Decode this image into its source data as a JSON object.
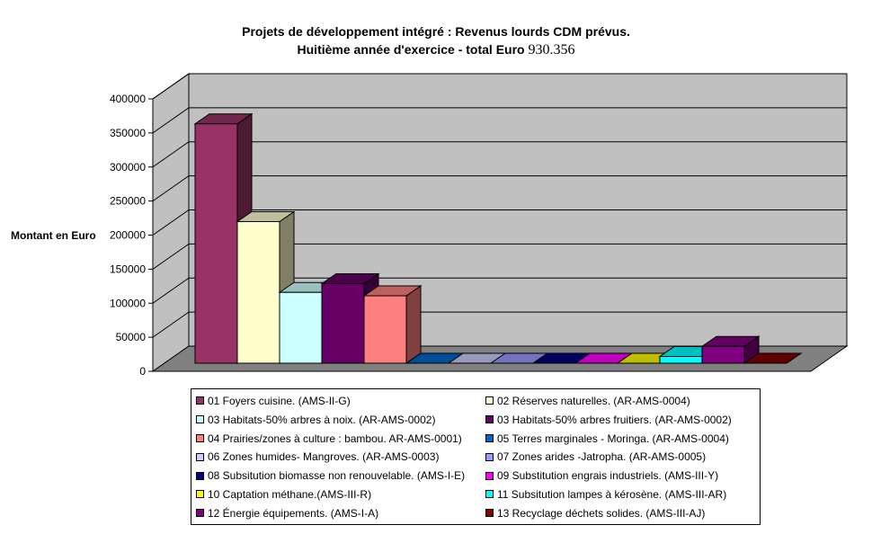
{
  "title_line1": "Projets de développement intégré : Revenus lourds CDM prévus.",
  "title_line2_prefix": "Huitième année d'exercice - total  Euro ",
  "title_total": "930.356",
  "chart_data": {
    "type": "bar",
    "ylabel": "Montant en Euro",
    "ylim": [
      0,
      400000
    ],
    "yticks": [
      "0",
      "50000",
      "100000",
      "150000",
      "200000",
      "250000",
      "300000",
      "350000",
      "400000"
    ],
    "grid": true,
    "legend_position": "bottom",
    "series": [
      {
        "name": "01 Foyers cuisine. (AMS-II-G)",
        "value": 355000,
        "color": "#993366"
      },
      {
        "name": "02 Réserves naturelles. (AR-AMS-0004)",
        "value": 210000,
        "color": "#ffffcc"
      },
      {
        "name": "03 Habitats-50% arbres à noix. (AR-AMS-0002)",
        "value": 105000,
        "color": "#ccffff"
      },
      {
        "name": "03 Habitats-50% arbres fruitiers. (AR-AMS-0002)",
        "value": 118000,
        "color": "#660066"
      },
      {
        "name": "04 Prairies/zones à culture : bambou. AR-AMS-0001)",
        "value": 100000,
        "color": "#ff8080"
      },
      {
        "name": "05 Terres marginales - Moringa. (AR-AMS-0004)",
        "value": 0,
        "color": "#0066cc"
      },
      {
        "name": "06 Zones humides- Mangroves. (AR-AMS-0003)",
        "value": 0,
        "color": "#ccccff"
      },
      {
        "name": "07 Zones arides -Jatropha. (AR-AMS-0005)",
        "value": 0,
        "color": "#9999ff"
      },
      {
        "name": "08 Subsitution biomasse non renouvelable. (AMS-I-E)",
        "value": 0,
        "color": "#000080"
      },
      {
        "name": "09 Substitution engrais industriels. (AMS-III-Y)",
        "value": 0,
        "color": "#ff00ff"
      },
      {
        "name": "10 Captation méthane.(AMS-III-R)",
        "value": 0,
        "color": "#ffff00"
      },
      {
        "name": "11 Subsitution lampes à kérosène. (AMS-III-AR)",
        "value": 10000,
        "color": "#00ffff"
      },
      {
        "name": "12 Énergie équipements. (AMS-I-A)",
        "value": 25000,
        "color": "#800080"
      },
      {
        "name": "13 Recyclage déchets solides. (AMS-III-AJ)",
        "value": 0,
        "color": "#800000"
      }
    ]
  }
}
